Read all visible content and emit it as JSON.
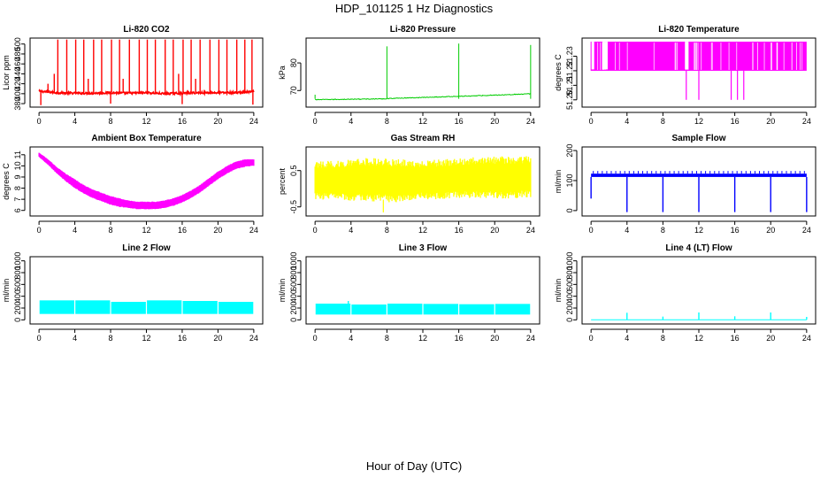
{
  "figure": {
    "title": "HDP_101125  1 Hz Diagnostics",
    "xlabel": "Hour of Day (UTC)"
  },
  "chart_data": [
    {
      "id": "co2",
      "type": "line",
      "title": "Li-820 CO2",
      "ylabel": "Licor ppm",
      "color": "#ff0000",
      "xlim": [
        -1,
        25
      ],
      "ylim": [
        373,
        512
      ],
      "xticks": [
        "0",
        "4",
        "8",
        "12",
        "16",
        "20",
        "24"
      ],
      "yticks": [
        "380",
        "400",
        "420",
        "440",
        "460",
        "480",
        "500"
      ],
      "hours": [
        0,
        2,
        4,
        6,
        8,
        10,
        12,
        14,
        16,
        18,
        20,
        22,
        24
      ],
      "baseline_ppm": [
        405,
        402,
        401,
        401,
        402,
        401,
        402,
        400,
        401,
        402,
        402,
        402,
        404
      ],
      "spike_hours": [
        1.0,
        1.7,
        2.1,
        3.1,
        4.1,
        5.0,
        5.5,
        6.1,
        7.0,
        8.1,
        9.0,
        9.4,
        10.1,
        11.2,
        12.1,
        13.0,
        14.1,
        15.0,
        15.6,
        16.1,
        17.0,
        17.5,
        18.0,
        19.1,
        20.1,
        21.0,
        22.1,
        23.0,
        23.8
      ],
      "spike_peaks_ppm": [
        420,
        440,
        509,
        509,
        509,
        509,
        430,
        509,
        509,
        509,
        509,
        430,
        509,
        509,
        509,
        509,
        509,
        509,
        440,
        509,
        509,
        430,
        509,
        509,
        509,
        509,
        509,
        509,
        509
      ],
      "dip_hours": [
        0.2,
        8.0,
        16.0,
        23.9
      ],
      "dip_lows_ppm": [
        377,
        380,
        379,
        378
      ]
    },
    {
      "id": "pressure",
      "type": "line",
      "title": "Li-820 Pressure",
      "ylabel": "kPa",
      "color": "#00cc00",
      "xlim": [
        -1,
        25
      ],
      "ylim": [
        64,
        89
      ],
      "xticks": [
        "0",
        "4",
        "8",
        "12",
        "16",
        "20",
        "24"
      ],
      "yticks": [
        "70",
        "80"
      ],
      "segments": [
        {
          "start_hour": 0,
          "end_hour": 8,
          "start_kpa": 66.7,
          "end_kpa": 67.0
        },
        {
          "start_hour": 8,
          "end_hour": 16,
          "start_kpa": 67.1,
          "end_kpa": 67.9
        },
        {
          "start_hour": 16,
          "end_hour": 24,
          "start_kpa": 67.9,
          "end_kpa": 68.8
        }
      ],
      "spike_hours": [
        0.0,
        8.0,
        16.0,
        24.0
      ],
      "spike_peaks_kpa": [
        68.5,
        86.0,
        87.0,
        86.5
      ]
    },
    {
      "id": "licor-temp",
      "type": "line",
      "title": "Li-820 Temperature",
      "ylabel": "degrees C",
      "color": "#ff00ff",
      "xlim": [
        -1,
        25
      ],
      "ylim": [
        51.195,
        51.2425
      ],
      "xticks": [
        "0",
        "4",
        "8",
        "12",
        "16",
        "20",
        "24"
      ],
      "yticks": [
        "51.20",
        "51.21",
        "51.22",
        "51.23"
      ],
      "low_value": 51.22,
      "high_value": 51.24,
      "band_start_hour": 0,
      "band_end_hour": 24,
      "high_only_spans": [
        [
          0.0,
          0.4
        ],
        [
          1.2,
          1.9
        ],
        [
          10.4,
          10.9
        ]
      ],
      "drop_value": 51.2,
      "drop_hours": [
        10.6,
        12.0,
        15.6,
        16.3,
        17.0
      ]
    },
    {
      "id": "box-temp",
      "type": "area",
      "title": "Ambient Box Temperature",
      "ylabel": "degrees C",
      "color": "#ff00ff",
      "xlim": [
        -1,
        25
      ],
      "ylim": [
        5.5,
        11.7
      ],
      "xticks": [
        "0",
        "4",
        "8",
        "12",
        "16",
        "20",
        "24"
      ],
      "yticks": [
        "6",
        "7",
        "8",
        "9",
        "10",
        "11"
      ],
      "hours": [
        0,
        1,
        2,
        3,
        4,
        5,
        6,
        7,
        8,
        9,
        10,
        11,
        12,
        13,
        14,
        15,
        16,
        17,
        18,
        19,
        20,
        21,
        22,
        23,
        24
      ],
      "upper_c": [
        11.2,
        10.6,
        9.9,
        9.3,
        8.8,
        8.3,
        7.9,
        7.6,
        7.3,
        7.1,
        6.9,
        6.8,
        6.8,
        6.8,
        6.9,
        7.1,
        7.4,
        7.8,
        8.3,
        8.9,
        9.5,
        10.0,
        10.4,
        10.6,
        10.6
      ],
      "lower_c": [
        10.8,
        10.1,
        9.3,
        8.6,
        8.0,
        7.5,
        7.1,
        6.8,
        6.5,
        6.3,
        6.2,
        6.1,
        6.1,
        6.1,
        6.2,
        6.4,
        6.7,
        7.1,
        7.6,
        8.2,
        8.8,
        9.3,
        9.7,
        9.9,
        10.0
      ]
    },
    {
      "id": "rh",
      "type": "area",
      "title": "Gas Stream RH",
      "ylabel": "percent",
      "color": "#ffff00",
      "xlim": [
        -1,
        25
      ],
      "ylim": [
        -0.75,
        1.15
      ],
      "xticks": [
        "0",
        "4",
        "8",
        "12",
        "16",
        "20",
        "24"
      ],
      "yticks": [
        "-0.5",
        "0.5"
      ],
      "hours": [
        0,
        3,
        6,
        9,
        12,
        15,
        18,
        21,
        24
      ],
      "upper_pct": [
        0.75,
        0.78,
        0.85,
        0.82,
        0.78,
        0.82,
        0.88,
        0.9,
        0.9
      ],
      "lower_pct": [
        -0.3,
        -0.32,
        -0.35,
        -0.38,
        -0.3,
        -0.28,
        -0.25,
        -0.28,
        -0.25
      ],
      "outlier_hour": 7.6,
      "outlier_low_pct": -0.65
    },
    {
      "id": "sample-flow",
      "type": "line",
      "title": "Sample Flow",
      "ylabel": "ml/min",
      "color": "#0000ff",
      "xlim": [
        -1,
        25
      ],
      "ylim": [
        -18,
        212
      ],
      "xticks": [
        "0",
        "4",
        "8",
        "12",
        "16",
        "20",
        "24"
      ],
      "yticks": [
        "0",
        "100",
        "200"
      ],
      "band_lower_ml": 112,
      "band_upper_ml": 123,
      "spike_peak_ml": 132,
      "spike_interval_hours": 0.5,
      "dip_hours": [
        0.0,
        4.0,
        8.0,
        12.0,
        16.0,
        20.0,
        24.0
      ],
      "dip_lows_ml": [
        40,
        -5,
        -5,
        -5,
        -5,
        -5,
        -5
      ]
    },
    {
      "id": "line2-flow",
      "type": "area",
      "title": "Line 2 Flow",
      "ylabel": "ml/min",
      "color": "#00ffff",
      "xlim": [
        -1,
        25
      ],
      "ylim": [
        -70,
        1070
      ],
      "xticks": [
        "0",
        "4",
        "8",
        "12",
        "16",
        "20",
        "24"
      ],
      "yticks": [
        "0",
        "200",
        "400",
        "600",
        "800",
        "1000"
      ],
      "segments": [
        {
          "start_hour": 0,
          "end_hour": 4,
          "lower_ml": 100,
          "upper_ml": 330
        },
        {
          "start_hour": 4,
          "end_hour": 8,
          "lower_ml": 100,
          "upper_ml": 330
        },
        {
          "start_hour": 8,
          "end_hour": 12,
          "lower_ml": 100,
          "upper_ml": 305
        },
        {
          "start_hour": 12,
          "end_hour": 16,
          "lower_ml": 100,
          "upper_ml": 330
        },
        {
          "start_hour": 16,
          "end_hour": 20,
          "lower_ml": 100,
          "upper_ml": 320
        },
        {
          "start_hour": 20,
          "end_hour": 24,
          "lower_ml": 100,
          "upper_ml": 305
        }
      ]
    },
    {
      "id": "line3-flow",
      "type": "area",
      "title": "Line 3 Flow",
      "ylabel": "ml/min",
      "color": "#00ffff",
      "xlim": [
        -1,
        25
      ],
      "ylim": [
        -70,
        1070
      ],
      "xticks": [
        "0",
        "4",
        "8",
        "12",
        "16",
        "20",
        "24"
      ],
      "yticks": [
        "0",
        "200",
        "400",
        "600",
        "800",
        "1000"
      ],
      "segments": [
        {
          "start_hour": 0,
          "end_hour": 4,
          "lower_ml": 90,
          "upper_ml": 275
        },
        {
          "start_hour": 4,
          "end_hour": 8,
          "lower_ml": 90,
          "upper_ml": 260
        },
        {
          "start_hour": 8,
          "end_hour": 12,
          "lower_ml": 90,
          "upper_ml": 275
        },
        {
          "start_hour": 12,
          "end_hour": 16,
          "lower_ml": 90,
          "upper_ml": 270
        },
        {
          "start_hour": 16,
          "end_hour": 20,
          "lower_ml": 90,
          "upper_ml": 265
        },
        {
          "start_hour": 20,
          "end_hour": 24,
          "lower_ml": 90,
          "upper_ml": 270
        }
      ],
      "spike_hour": 3.7,
      "spike_peak_ml": 320
    },
    {
      "id": "line4-flow",
      "type": "line",
      "title": "Line 4 (LT) Flow",
      "ylabel": "ml/min",
      "color": "#00ffff",
      "xlim": [
        -1,
        25
      ],
      "ylim": [
        -70,
        1070
      ],
      "xticks": [
        "0",
        "4",
        "8",
        "12",
        "16",
        "20",
        "24"
      ],
      "yticks": [
        "0",
        "200",
        "400",
        "600",
        "800",
        "1000"
      ],
      "baseline_ml": 2,
      "spike_hours": [
        4.0,
        8.0,
        12.0,
        16.0,
        20.0,
        24.0
      ],
      "spike_peaks_ml": [
        120,
        55,
        125,
        60,
        125,
        50
      ]
    }
  ]
}
